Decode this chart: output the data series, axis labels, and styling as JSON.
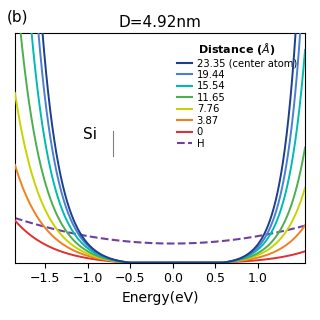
{
  "title": "D=4.92nm",
  "xlabel": "Energy(eV)",
  "label_b": "(b)",
  "label_si": "Si",
  "label_h": "H",
  "xlim": [
    -1.85,
    1.55
  ],
  "ylim": [
    0,
    1.08
  ],
  "xticks": [
    -1.5,
    -1.0,
    -0.5,
    0.0,
    0.5,
    1.0
  ],
  "distances": [
    "23.35 (center atom)",
    "19.44",
    "15.54",
    "11.65",
    "7.76",
    "3.87",
    "0"
  ],
  "colors": [
    "#1c3f8c",
    "#4a7fd4",
    "#00bbb0",
    "#4baf50",
    "#c8d400",
    "#f08020",
    "#e03030"
  ],
  "h_color": "#7040a0",
  "background_color": "#ffffff"
}
